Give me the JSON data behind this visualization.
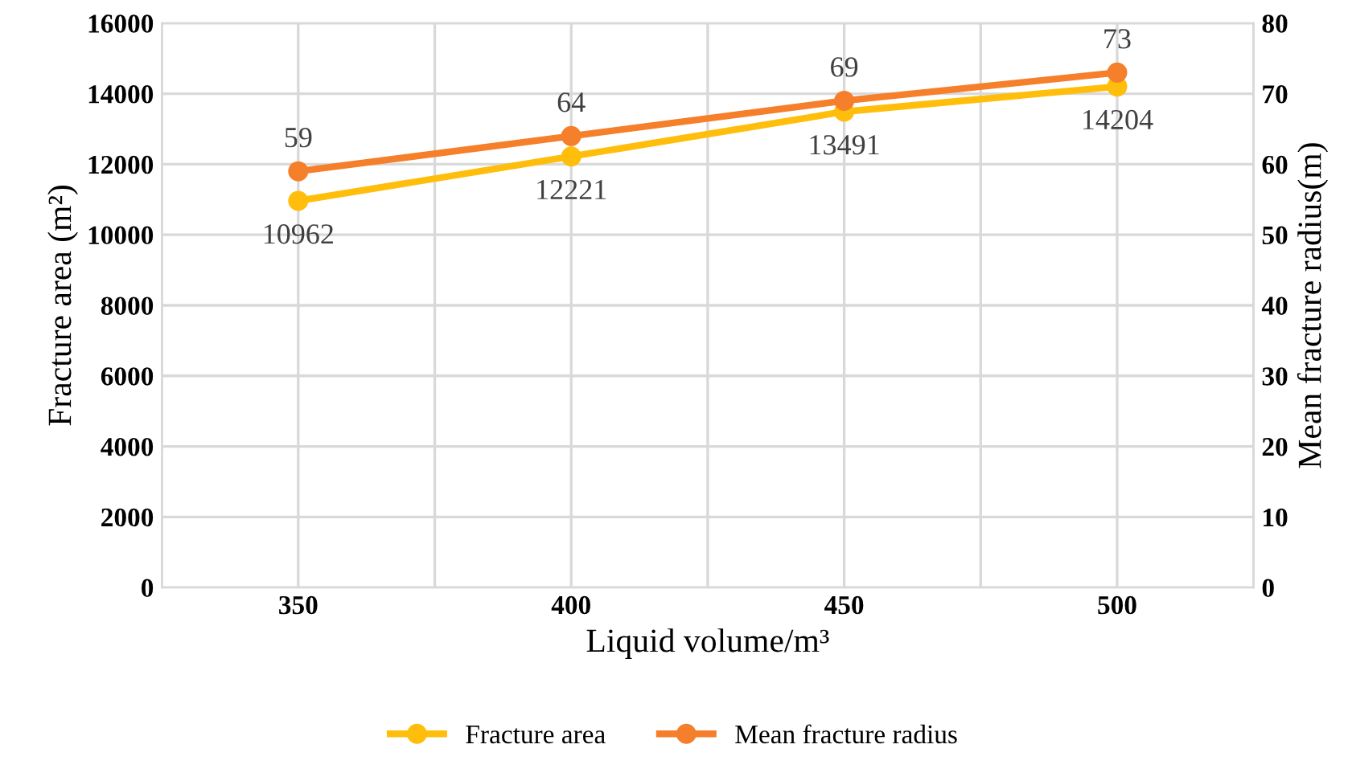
{
  "chart_data": {
    "type": "line",
    "xlabel": "Liquid volume/m³",
    "ylabel": "Fracture area (m²)",
    "y2label": "Mean fracture radius(m)",
    "x": [
      350,
      400,
      450,
      500
    ],
    "series": [
      {
        "name": "Fracture area",
        "color": "#ffbe0b",
        "values": [
          10962,
          12221,
          13491,
          14204
        ]
      },
      {
        "name": "Mean fracture radius",
        "color": "#f57f2a",
        "values": [
          59,
          64,
          69,
          73
        ],
        "axis": "y2"
      }
    ],
    "xlim": [
      325,
      525
    ],
    "xticks": [
      {
        "value": 325,
        "label": null
      },
      350,
      {
        "value": 375,
        "label": null
      },
      400,
      {
        "value": 425,
        "label": null
      },
      450,
      {
        "value": 475,
        "label": null
      },
      500,
      {
        "value": 525,
        "label": null
      }
    ],
    "ylim": [
      0,
      16000
    ],
    "yticks": [
      0,
      2000,
      4000,
      6000,
      8000,
      10000,
      12000,
      14000,
      16000
    ],
    "y2lim": [
      0,
      80
    ],
    "y2ticks": [
      0,
      10,
      20,
      30,
      40,
      50,
      60,
      70,
      80
    ],
    "grid": true,
    "legend": "bottom",
    "marker": "circle",
    "line_style": "solid",
    "data_labels": true
  }
}
